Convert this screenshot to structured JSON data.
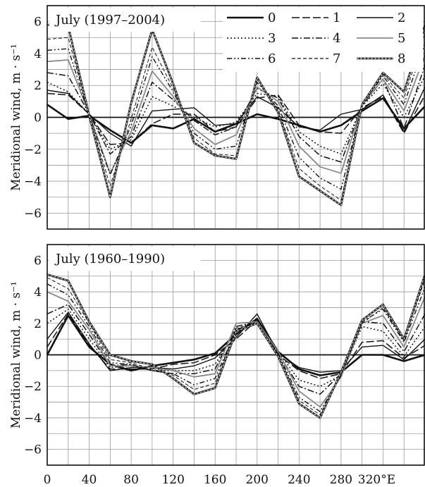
{
  "chart_data": [
    {
      "type": "line",
      "title": "July (1997–2004)",
      "xlabel": "",
      "ylabel": "Meridional wind, m · s⁻¹",
      "xlim": [
        0,
        360
      ],
      "ylim": [
        -7,
        7
      ],
      "grid": true,
      "legend_position": "top-right",
      "x": [
        0,
        20,
        40,
        60,
        80,
        100,
        120,
        140,
        160,
        180,
        200,
        220,
        240,
        260,
        280,
        300,
        320,
        340,
        360
      ],
      "x_ticks": [
        0,
        40,
        80,
        120,
        160,
        200,
        240,
        280,
        320
      ],
      "x_tick_labels": [
        "0",
        "40",
        "80",
        "120",
        "160",
        "200",
        "240",
        "280",
        "320°E"
      ],
      "y_ticks": [
        -6,
        -4,
        -2,
        0,
        2,
        4,
        6
      ],
      "y_tick_labels": [
        "−6",
        "−4",
        "−2",
        "0",
        "2",
        "4",
        "6"
      ],
      "series": [
        {
          "name": "0",
          "values": [
            0.8,
            -0.1,
            0.1,
            -0.8,
            -1.6,
            -0.5,
            -0.7,
            -0.1,
            -0.9,
            -0.4,
            0.2,
            -0.1,
            -0.5,
            -0.9,
            -0.5,
            0.4,
            1.2,
            -0.7,
            0.7
          ]
        },
        {
          "name": "1",
          "values": [
            1.5,
            1.4,
            0.2,
            -1.7,
            -1.6,
            -0.4,
            0.2,
            0.2,
            -0.9,
            -0.6,
            1.2,
            1.4,
            -0.5,
            -0.9,
            -1.0,
            0.6,
            1.3,
            -1.0,
            1.4
          ]
        },
        {
          "name": "2",
          "values": [
            1.7,
            1.5,
            0.2,
            -1.0,
            -1.8,
            0.4,
            0.5,
            0.6,
            -0.5,
            -0.4,
            1.3,
            0.6,
            -0.6,
            -0.8,
            0.2,
            0.5,
            1.4,
            -0.9,
            1.9
          ]
        },
        {
          "name": "3",
          "values": [
            2.2,
            1.6,
            0.2,
            -2.0,
            -1.4,
            1.3,
            0.7,
            0.0,
            -0.6,
            -0.3,
            1.5,
            1.3,
            -0.9,
            -1.8,
            -2.3,
            0.7,
            2.1,
            0.0,
            2.6
          ]
        },
        {
          "name": "4",
          "values": [
            2.8,
            2.6,
            0.2,
            -2.3,
            -1.2,
            2.2,
            1.1,
            -0.2,
            -1.1,
            -0.6,
            1.8,
            1.2,
            -1.2,
            -2.4,
            -2.8,
            0.7,
            2.4,
            -0.7,
            3.3
          ]
        },
        {
          "name": "5",
          "values": [
            3.5,
            3.6,
            0.2,
            -3.5,
            -0.9,
            2.9,
            1.3,
            -0.7,
            -1.7,
            -1.1,
            1.9,
            1.0,
            -1.8,
            -3.1,
            -3.5,
            0.8,
            2.4,
            0.4,
            3.9
          ]
        },
        {
          "name": "6",
          "values": [
            4.2,
            4.3,
            0.1,
            -3.6,
            -0.5,
            3.8,
            1.6,
            -1.0,
            -2.0,
            -1.8,
            2.2,
            0.7,
            -2.5,
            -3.8,
            -4.5,
            0.8,
            2.6,
            0.8,
            4.7
          ]
        },
        {
          "name": "7",
          "values": [
            4.9,
            5.0,
            0.1,
            -4.3,
            -0.1,
            4.4,
            1.8,
            -1.3,
            -2.3,
            -2.4,
            2.4,
            0.5,
            -3.2,
            -4.3,
            -5.2,
            0.9,
            2.7,
            1.2,
            5.3
          ]
        },
        {
          "name": "8",
          "values": [
            5.8,
            5.7,
            0.1,
            -5.0,
            0.9,
            5.5,
            2.1,
            -1.6,
            -2.4,
            -2.6,
            2.5,
            0.3,
            -3.7,
            -4.6,
            -5.5,
            0.8,
            2.8,
            1.6,
            5.8
          ]
        }
      ]
    },
    {
      "type": "line",
      "title": "July (1960–1990)",
      "xlabel": "",
      "ylabel": "Meridional wind, m · s⁻¹",
      "xlim": [
        0,
        360
      ],
      "ylim": [
        -7,
        7
      ],
      "grid": true,
      "x": [
        0,
        20,
        40,
        60,
        80,
        100,
        120,
        140,
        160,
        180,
        200,
        220,
        240,
        260,
        280,
        300,
        320,
        340,
        360
      ],
      "x_ticks": [
        0,
        40,
        80,
        120,
        160,
        200,
        240,
        280,
        320
      ],
      "x_tick_labels": [
        "0",
        "40",
        "80",
        "120",
        "160",
        "200",
        "240",
        "280",
        "320°E"
      ],
      "y_ticks": [
        -6,
        -4,
        -2,
        0,
        2,
        4,
        6
      ],
      "y_tick_labels": [
        "−6",
        "−4",
        "−2",
        "0",
        "2",
        "4",
        "6"
      ],
      "series": [
        {
          "name": "0",
          "values": [
            0.0,
            2.5,
            0.5,
            -0.6,
            -1.0,
            -0.7,
            -0.5,
            -0.3,
            0.1,
            1.3,
            2.3,
            0.2,
            -0.9,
            -1.3,
            -1.1,
            0.0,
            0.0,
            -0.4,
            0.0
          ]
        },
        {
          "name": "1",
          "values": [
            0.5,
            2.6,
            0.6,
            -0.9,
            -0.9,
            -0.9,
            -0.6,
            -0.5,
            0.0,
            1.0,
            2.2,
            0.0,
            -1.0,
            -1.5,
            -1.2,
            0.8,
            0.9,
            -0.2,
            0.6
          ]
        },
        {
          "name": "2",
          "values": [
            1.0,
            2.7,
            0.7,
            -1.0,
            -0.8,
            -0.8,
            -0.9,
            -0.7,
            -0.2,
            1.1,
            2.6,
            0.1,
            -0.8,
            -1.1,
            -1.0,
            0.5,
            0.6,
            -0.3,
            1.0
          ]
        },
        {
          "name": "3",
          "values": [
            2.0,
            2.9,
            1.0,
            -0.8,
            -0.7,
            -1.0,
            -1.0,
            -1.0,
            -0.6,
            1.6,
            2.2,
            0.2,
            -1.6,
            -2.0,
            -1.3,
            1.8,
            1.5,
            -0.1,
            1.8
          ]
        },
        {
          "name": "4",
          "values": [
            2.6,
            3.2,
            1.3,
            -0.7,
            -0.6,
            -1.0,
            -1.2,
            -1.2,
            -0.9,
            1.8,
            2.1,
            0.1,
            -2.0,
            -2.5,
            -1.2,
            2.1,
            2.0,
            0.2,
            2.6
          ]
        },
        {
          "name": "5",
          "values": [
            4.0,
            3.4,
            1.6,
            -0.7,
            -0.7,
            -0.8,
            -1.0,
            -1.4,
            -1.2,
            2.0,
            2.1,
            0.2,
            -2.3,
            -3.3,
            -1.4,
            2.0,
            2.5,
            0.5,
            3.7
          ]
        },
        {
          "name": "6",
          "values": [
            4.5,
            3.8,
            1.8,
            -0.5,
            -0.6,
            -1.0,
            -1.2,
            -1.9,
            -1.5,
            1.6,
            2.0,
            0.1,
            -2.7,
            -3.6,
            -1.3,
            2.1,
            2.9,
            0.8,
            4.3
          ]
        },
        {
          "name": "7",
          "values": [
            4.9,
            4.2,
            2.0,
            -0.3,
            -0.5,
            -0.9,
            -1.3,
            -2.2,
            -1.8,
            1.7,
            2.0,
            0.0,
            -2.9,
            -3.8,
            -1.2,
            2.0,
            3.0,
            0.9,
            4.8
          ]
        },
        {
          "name": "8",
          "values": [
            5.1,
            4.7,
            2.1,
            0.0,
            -0.4,
            -0.6,
            -1.5,
            -2.5,
            -2.1,
            1.5,
            2.0,
            -0.1,
            -3.1,
            -4.0,
            -1.1,
            2.2,
            3.2,
            1.0,
            5.1
          ]
        }
      ]
    }
  ],
  "series_styles": {
    "0": {
      "color": "#111111",
      "dash": "",
      "width": 2.6
    },
    "1": {
      "color": "#111111",
      "dash": "11 4",
      "width": 1.5
    },
    "2": {
      "color": "#111111",
      "dash": "",
      "width": 1.4
    },
    "3": {
      "color": "#111111",
      "dash": "2 3",
      "width": 1.5
    },
    "4": {
      "color": "#111111",
      "dash": "9 3 2 3",
      "width": 1.5
    },
    "5": {
      "color": "#8a8a8a",
      "dash": "",
      "width": 1.8
    },
    "6": {
      "color": "#111111",
      "dash": "7 3 2 3 2 3",
      "width": 1.4
    },
    "7": {
      "color": "#111111",
      "dash": "5 3",
      "width": 1.0
    },
    "8": {
      "color": "#222222",
      "dash": "",
      "width": 2.8,
      "double": true
    }
  }
}
